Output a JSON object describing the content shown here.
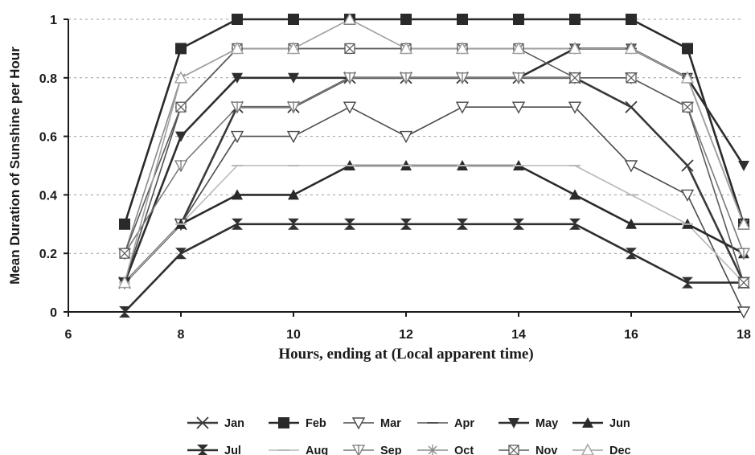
{
  "chart_data": {
    "type": "line",
    "title": "",
    "xlabel": "Hours, ending at (Local apparent time)",
    "ylabel": "Mean Duration of Sunshine per Hour",
    "xlim": [
      6,
      18
    ],
    "ylim": [
      0,
      1
    ],
    "xticks": [
      "6",
      "8",
      "10",
      "12",
      "14",
      "16",
      "18"
    ],
    "yticks": [
      "0",
      "0.2",
      "0.4",
      "0.6",
      "0.8",
      "1"
    ],
    "x": [
      7,
      8,
      9,
      10,
      11,
      12,
      13,
      14,
      15,
      16,
      17,
      18
    ],
    "grid": "dashed horizontal",
    "legend_position": "bottom",
    "series": [
      {
        "name": "Jan",
        "marker": "x-cross",
        "color": "#3a3a3a",
        "values": [
          0.1,
          0.3,
          0.7,
          0.7,
          0.8,
          0.8,
          0.8,
          0.8,
          0.8,
          0.7,
          0.5,
          0.1
        ]
      },
      {
        "name": "Feb",
        "marker": "filled-square",
        "color": "#2a2a2a",
        "values": [
          0.3,
          0.9,
          1.0,
          1.0,
          1.0,
          1.0,
          1.0,
          1.0,
          1.0,
          1.0,
          0.9,
          0.3
        ]
      },
      {
        "name": "Mar",
        "marker": "open-triangle-down",
        "color": "#4a4a4a",
        "values": [
          0.1,
          0.3,
          0.6,
          0.6,
          0.7,
          0.6,
          0.7,
          0.7,
          0.7,
          0.5,
          0.4,
          0.0
        ]
      },
      {
        "name": "Apr",
        "marker": "dash",
        "color": "#505050",
        "values": [
          0.1,
          0.7,
          0.9,
          0.9,
          0.9,
          0.9,
          0.9,
          0.9,
          0.9,
          0.9,
          0.8,
          0.3
        ]
      },
      {
        "name": "May",
        "marker": "filled-triangle-down",
        "color": "#2f2f2f",
        "values": [
          0.1,
          0.6,
          0.8,
          0.8,
          0.8,
          0.8,
          0.8,
          0.8,
          0.9,
          0.9,
          0.8,
          0.5
        ]
      },
      {
        "name": "Jun",
        "marker": "filled-triangle-up",
        "color": "#2a2a2a",
        "values": [
          0.1,
          0.3,
          0.4,
          0.4,
          0.5,
          0.5,
          0.5,
          0.5,
          0.4,
          0.3,
          0.3,
          0.2
        ]
      },
      {
        "name": "Jul",
        "marker": "bowtie",
        "color": "#303030",
        "values": [
          0.0,
          0.2,
          0.3,
          0.3,
          0.3,
          0.3,
          0.3,
          0.3,
          0.3,
          0.2,
          0.1,
          0.1
        ]
      },
      {
        "name": "Aug",
        "marker": "dash",
        "color": "#b8b8b8",
        "values": [
          0.1,
          0.3,
          0.5,
          0.5,
          0.5,
          0.5,
          0.5,
          0.5,
          0.5,
          0.4,
          0.3,
          0.1
        ]
      },
      {
        "name": "Sep",
        "marker": "open-triangle-pipe",
        "color": "#7a7a7a",
        "values": [
          0.2,
          0.5,
          0.7,
          0.7,
          0.8,
          0.8,
          0.8,
          0.8,
          0.8,
          0.8,
          0.7,
          0.2
        ]
      },
      {
        "name": "Oct",
        "marker": "x-line",
        "color": "#8a8a8a",
        "values": [
          0.2,
          0.8,
          0.9,
          0.9,
          0.9,
          0.9,
          0.9,
          0.9,
          0.9,
          0.9,
          0.8,
          0.3
        ]
      },
      {
        "name": "Nov",
        "marker": "square-x",
        "color": "#5a5a5a",
        "values": [
          0.2,
          0.7,
          0.9,
          0.9,
          0.9,
          0.9,
          0.9,
          0.9,
          0.8,
          0.8,
          0.7,
          0.1
        ]
      },
      {
        "name": "Dec",
        "marker": "open-triangle-up",
        "color": "#a0a0a0",
        "values": [
          0.1,
          0.8,
          0.9,
          0.9,
          1.0,
          0.9,
          0.9,
          0.9,
          0.9,
          0.9,
          0.8,
          0.3
        ]
      }
    ]
  }
}
